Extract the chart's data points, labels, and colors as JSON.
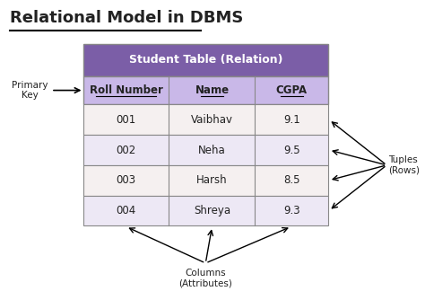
{
  "title": "Relational Model in DBMS",
  "table_title": "Student Table (Relation)",
  "headers": [
    "Roll Number",
    "Name",
    "CGPA"
  ],
  "rows": [
    [
      "001",
      "Vaibhav",
      "9.1"
    ],
    [
      "002",
      "Neha",
      "9.5"
    ],
    [
      "003",
      "Harsh",
      "8.5"
    ],
    [
      "004",
      "Shreya",
      "9.3"
    ]
  ],
  "header_bg": "#7B5EA7",
  "subheader_bg": "#C9B8E8",
  "row_bg_odd": "#F5F0F0",
  "row_bg_even": "#EDE8F5",
  "table_border": "#888888",
  "text_color": "#222222",
  "bg_color": "#FFFFFF",
  "label_primary_key": "Primary\nKey",
  "label_tuples": "Tuples\n(Rows)",
  "label_columns": "Columns\n(Attributes)"
}
